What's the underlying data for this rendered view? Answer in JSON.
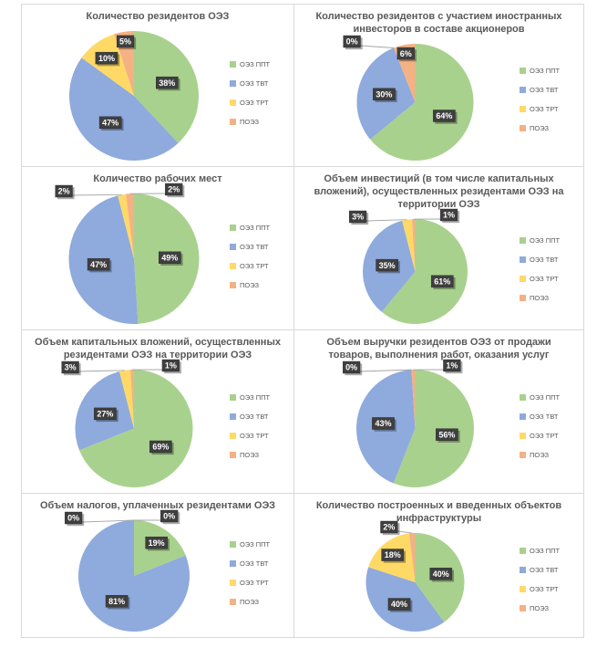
{
  "page": {
    "background": "#ffffff",
    "grid_line_color": "#d9d9d9"
  },
  "style": {
    "series_colors": [
      "#a9d18e",
      "#8faadc",
      "#ffd966",
      "#f4b183"
    ],
    "title_color": "#595959",
    "legend_text_color": "#595959",
    "data_label_bg": "#3f3f3f",
    "data_label_text": "#ffffff",
    "leader_line_color": "#a6a6a6"
  },
  "legend": {
    "position": "right",
    "labels": [
      "ОЭЗ ППТ",
      "ОЭЗ ТВТ",
      "ОЭЗ ТРТ",
      "ПОЭЗ"
    ]
  },
  "chart_data": [
    {
      "type": "pie",
      "title": "Количество резидентов ОЭЗ",
      "categories": [
        "ОЭЗ ППТ",
        "ОЭЗ ТВТ",
        "ОЭЗ ТРТ",
        "ПОЭЗ"
      ],
      "values": [
        38,
        47,
        10,
        5
      ],
      "labels": [
        "38%",
        "47%",
        "10%",
        "5%"
      ],
      "legend_position": "right"
    },
    {
      "type": "pie",
      "title": "Количество резидентов с участием иностранных инвесторов в составе акционеров",
      "categories": [
        "ОЭЗ ППТ",
        "ОЭЗ ТВТ",
        "ОЭЗ ТРТ",
        "ПОЭЗ"
      ],
      "values": [
        64,
        30,
        0,
        6
      ],
      "labels": [
        "64%",
        "30%",
        "0%",
        "6%"
      ],
      "legend_position": "right"
    },
    {
      "type": "pie",
      "title": "Количество рабочих мест",
      "categories": [
        "ОЭЗ ППТ",
        "ОЭЗ ТВТ",
        "ОЭЗ ТРТ",
        "ПОЭЗ"
      ],
      "values": [
        49,
        47,
        2,
        2
      ],
      "labels": [
        "49%",
        "47%",
        "2%",
        "2%"
      ],
      "legend_position": "right"
    },
    {
      "type": "pie",
      "title": "Объем инвестиций (в том числе капитальных вложений), осуществленных резидентами ОЭЗ на территории ОЭЗ",
      "categories": [
        "ОЭЗ ППТ",
        "ОЭЗ ТВТ",
        "ОЭЗ ТРТ",
        "ПОЭЗ"
      ],
      "values": [
        61,
        35,
        3,
        1
      ],
      "labels": [
        "61%",
        "35%",
        "3%",
        "1%"
      ],
      "legend_position": "right"
    },
    {
      "type": "pie",
      "title": "Объем капитальных вложений, осуществленных резидентами ОЭЗ на территории ОЭЗ",
      "categories": [
        "ОЭЗ ППТ",
        "ОЭЗ ТВТ",
        "ОЭЗ ТРТ",
        "ПОЭЗ"
      ],
      "values": [
        69,
        27,
        3,
        1
      ],
      "labels": [
        "69%",
        "27%",
        "3%",
        "1%"
      ],
      "legend_position": "right"
    },
    {
      "type": "pie",
      "title": "Объем выручки резидентов ОЭЗ от продажи товаров, выполнения работ, оказания услуг",
      "categories": [
        "ОЭЗ ППТ",
        "ОЭЗ ТВТ",
        "ОЭЗ ТРТ",
        "ПОЭЗ"
      ],
      "values": [
        56,
        43,
        0,
        1
      ],
      "labels": [
        "56%",
        "43%",
        "0%",
        "1%"
      ],
      "legend_position": "right"
    },
    {
      "type": "pie",
      "title": "Объем налогов, уплаченных резидентами ОЭЗ",
      "categories": [
        "ОЭЗ ППТ",
        "ОЭЗ ТВТ",
        "ОЭЗ ТРТ",
        "ПОЭЗ"
      ],
      "values": [
        19,
        81,
        0,
        0
      ],
      "labels": [
        "19%",
        "81%",
        "0%",
        "0%"
      ],
      "legend_position": "right"
    },
    {
      "type": "pie",
      "title": "Количество построенных и введенных объектов инфраструктуры",
      "categories": [
        "ОЭЗ ППТ",
        "ОЭЗ ТВТ",
        "ОЭЗ ТРТ",
        "ПОЭЗ"
      ],
      "values": [
        40,
        40,
        18,
        2
      ],
      "labels": [
        "40%",
        "40%",
        "18%",
        "2%"
      ],
      "legend_position": "right"
    }
  ]
}
